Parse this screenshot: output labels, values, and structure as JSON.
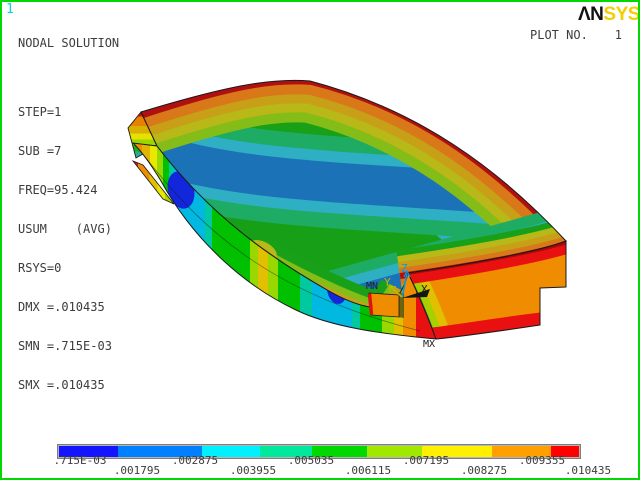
{
  "frame_id": "1",
  "logo": {
    "part1": "ΛN",
    "part2": "SYS"
  },
  "plot_no": {
    "label": "PLOT NO.",
    "value": "1"
  },
  "annotation": {
    "title": "NODAL SOLUTION",
    "lines": [
      "STEP=1",
      "SUB =7",
      "FREQ=95.424",
      "USUM    (AVG)",
      "RSYS=0",
      "DMX =.010435",
      "SMN =.715E-03",
      "SMX =.010435"
    ]
  },
  "model": {
    "min_label": "MN",
    "max_label": "MX",
    "triad": {
      "x": "X",
      "y": "Y",
      "z": "Z"
    }
  },
  "legend": {
    "labels": [
      ".715E-03",
      ".001795",
      ".002875",
      ".003955",
      ".005035",
      ".006115",
      ".007195",
      ".008275",
      ".009355",
      ".010435"
    ],
    "colors": [
      "#1414FF",
      "#0080FF",
      "#00F0FF",
      "#00E89C",
      "#00D800",
      "#A0E800",
      "#FFF000",
      "#FFA000",
      "#FF0000"
    ]
  },
  "colors": {
    "border": "#00D800",
    "frame_id": "#00D8D8",
    "logo_accent": "#F0D000",
    "text": "#3C3C3C",
    "triad_z": "#009CF0",
    "triad_y": "#BCBC00",
    "triad_x": "#202020"
  }
}
